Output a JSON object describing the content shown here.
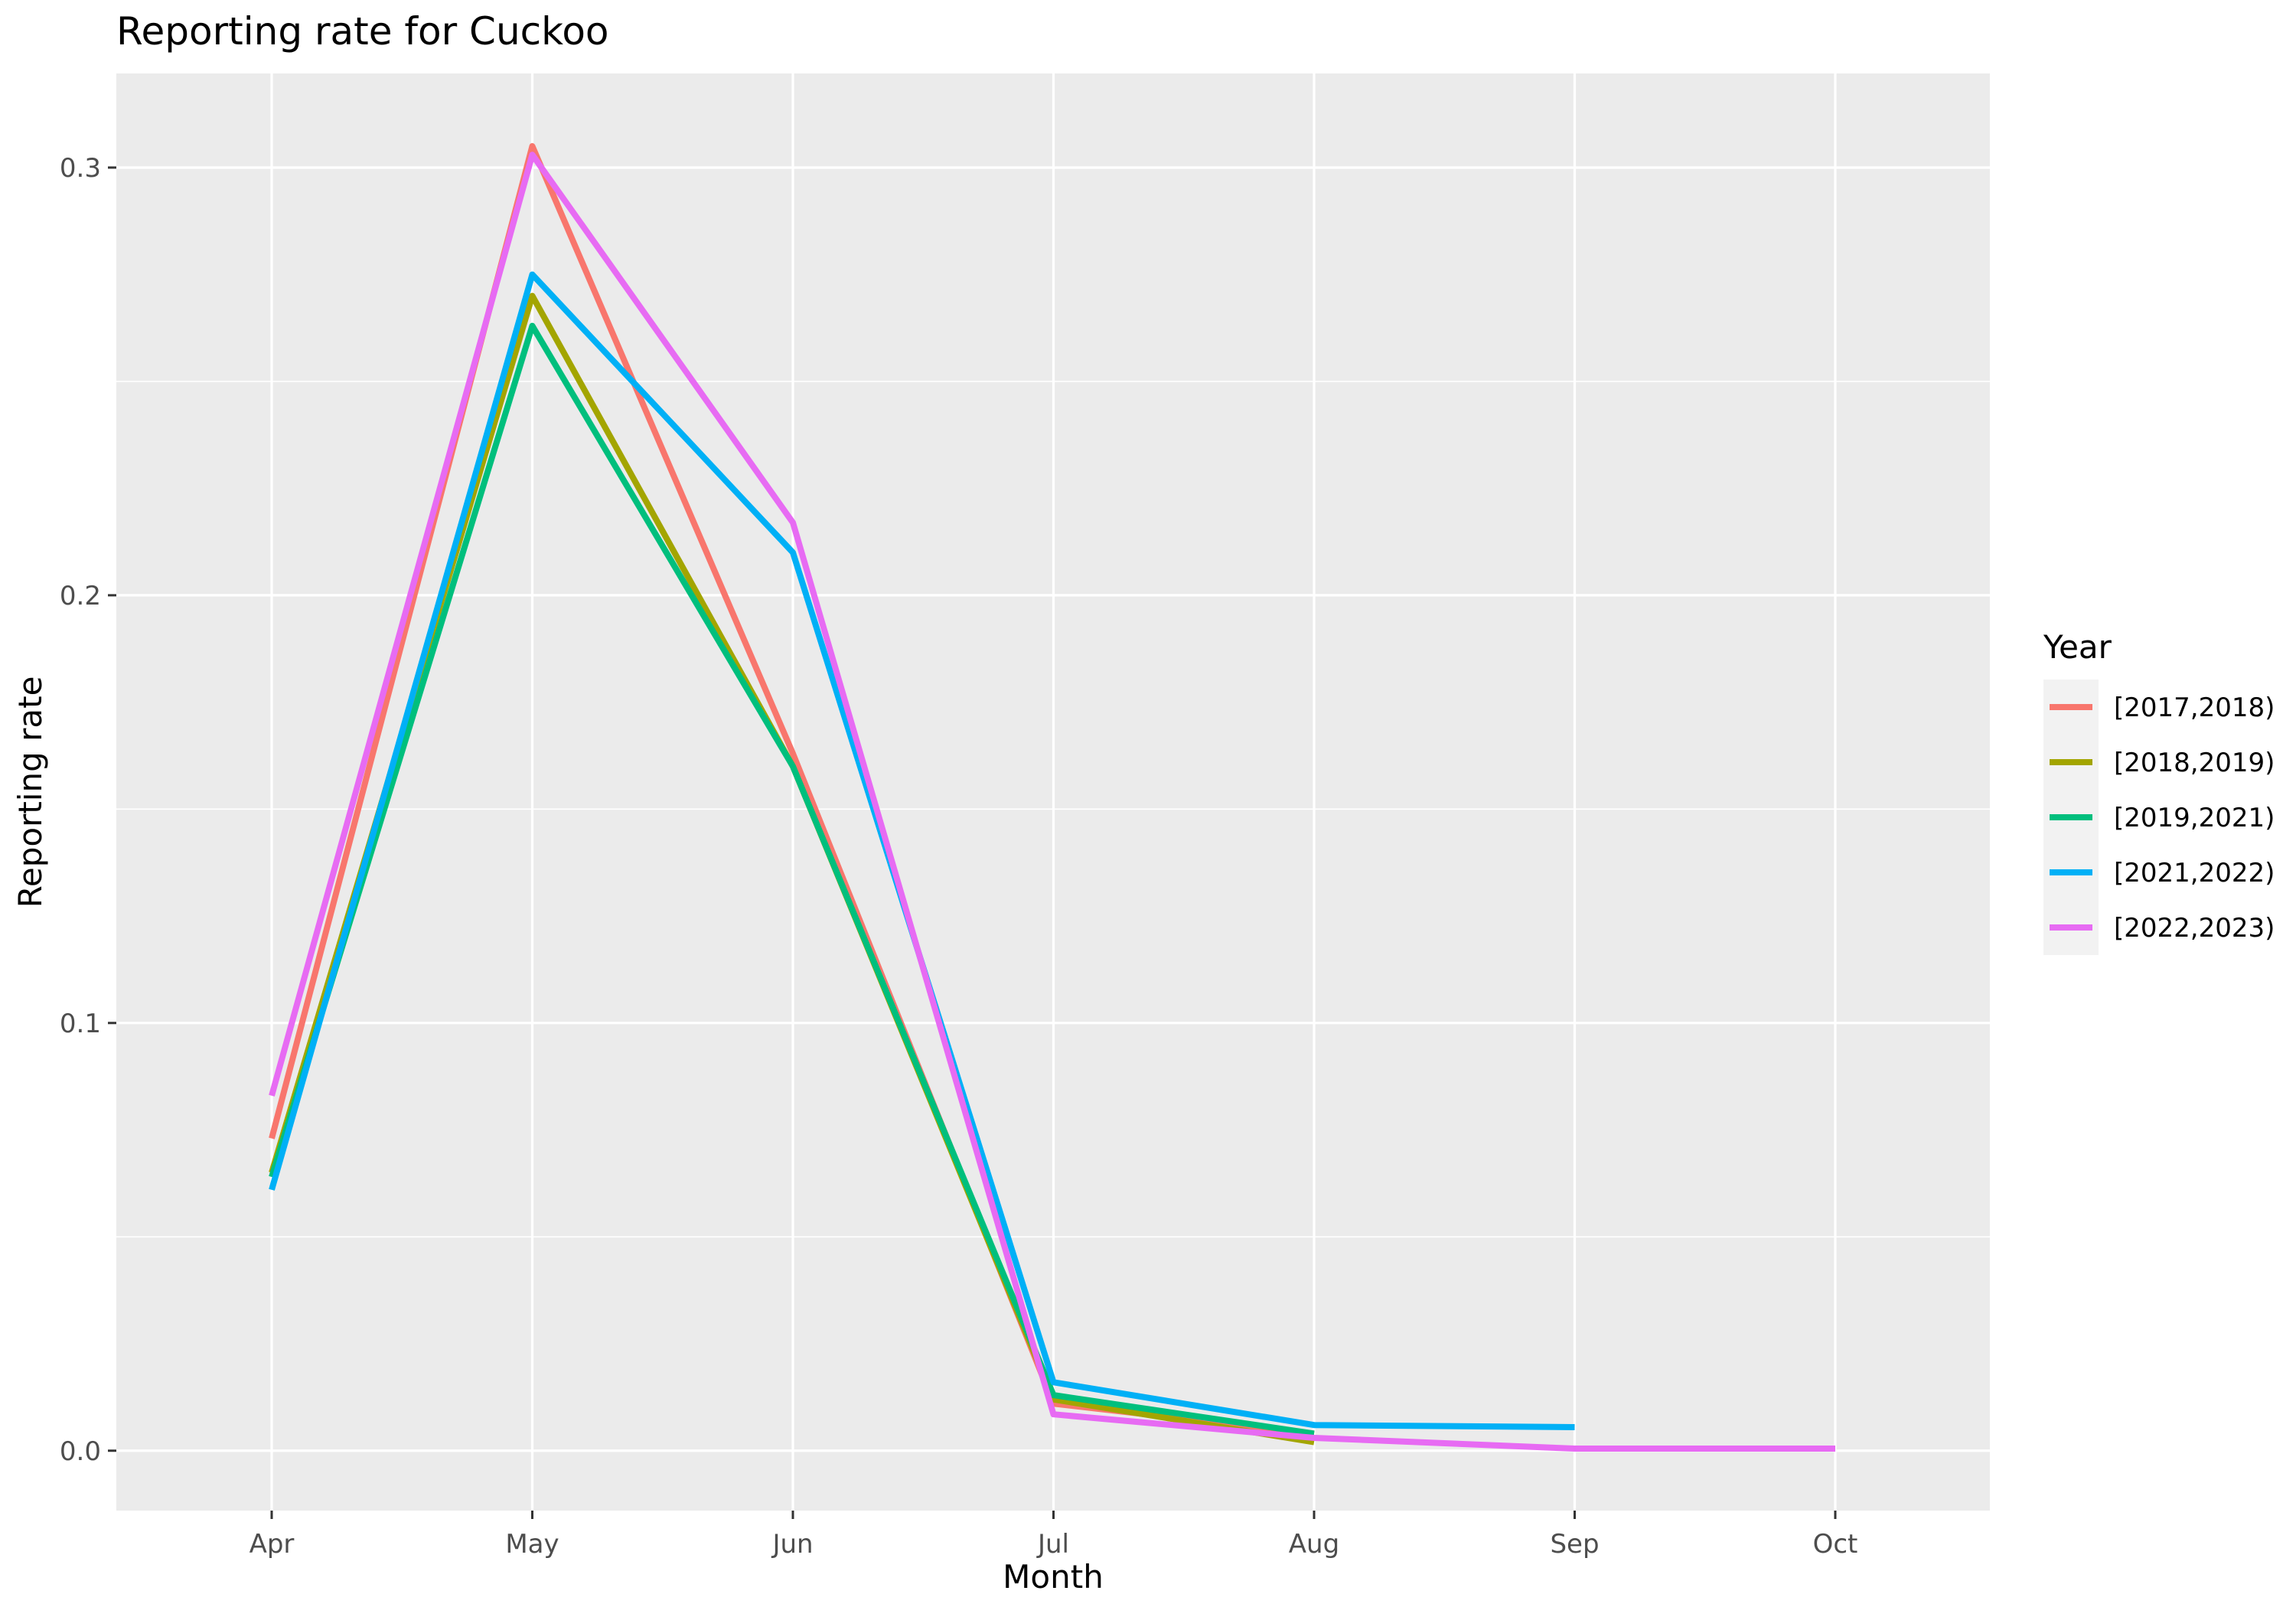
{
  "chart_data": {
    "type": "line",
    "title": "Reporting rate for Cuckoo",
    "xlabel": "Month",
    "ylabel": "Reporting rate",
    "categories": [
      "Apr",
      "May",
      "Jun",
      "Jul",
      "Aug",
      "Sep",
      "Oct"
    ],
    "ylim": [
      -0.014,
      0.322
    ],
    "yticks": [
      0.0,
      0.1,
      0.2,
      0.3
    ],
    "ytick_labels": [
      "0.0",
      "0.1",
      "0.2",
      "0.3"
    ],
    "grid": true,
    "legend": {
      "title": "Year",
      "position": "right"
    },
    "series": [
      {
        "name": "[2017,2018)",
        "color": "#F8766D",
        "values": [
          0.073,
          0.305,
          0.163,
          0.011,
          0.004,
          null,
          null
        ]
      },
      {
        "name": "[2018,2019)",
        "color": "#A3A500",
        "values": [
          0.065,
          0.27,
          0.16,
          0.012,
          0.002,
          null,
          null
        ]
      },
      {
        "name": "[2019,2021)",
        "color": "#00BF7D",
        "values": [
          0.064,
          0.263,
          0.16,
          0.013,
          0.004,
          null,
          null
        ]
      },
      {
        "name": "[2021,2022)",
        "color": "#00B0F6",
        "values": [
          0.061,
          0.275,
          0.21,
          0.016,
          0.006,
          0.0055,
          null
        ]
      },
      {
        "name": "[2022,2023)",
        "color": "#E76BF3",
        "values": [
          0.083,
          0.303,
          0.217,
          0.0085,
          0.003,
          0.0005,
          0.0005
        ]
      }
    ]
  }
}
